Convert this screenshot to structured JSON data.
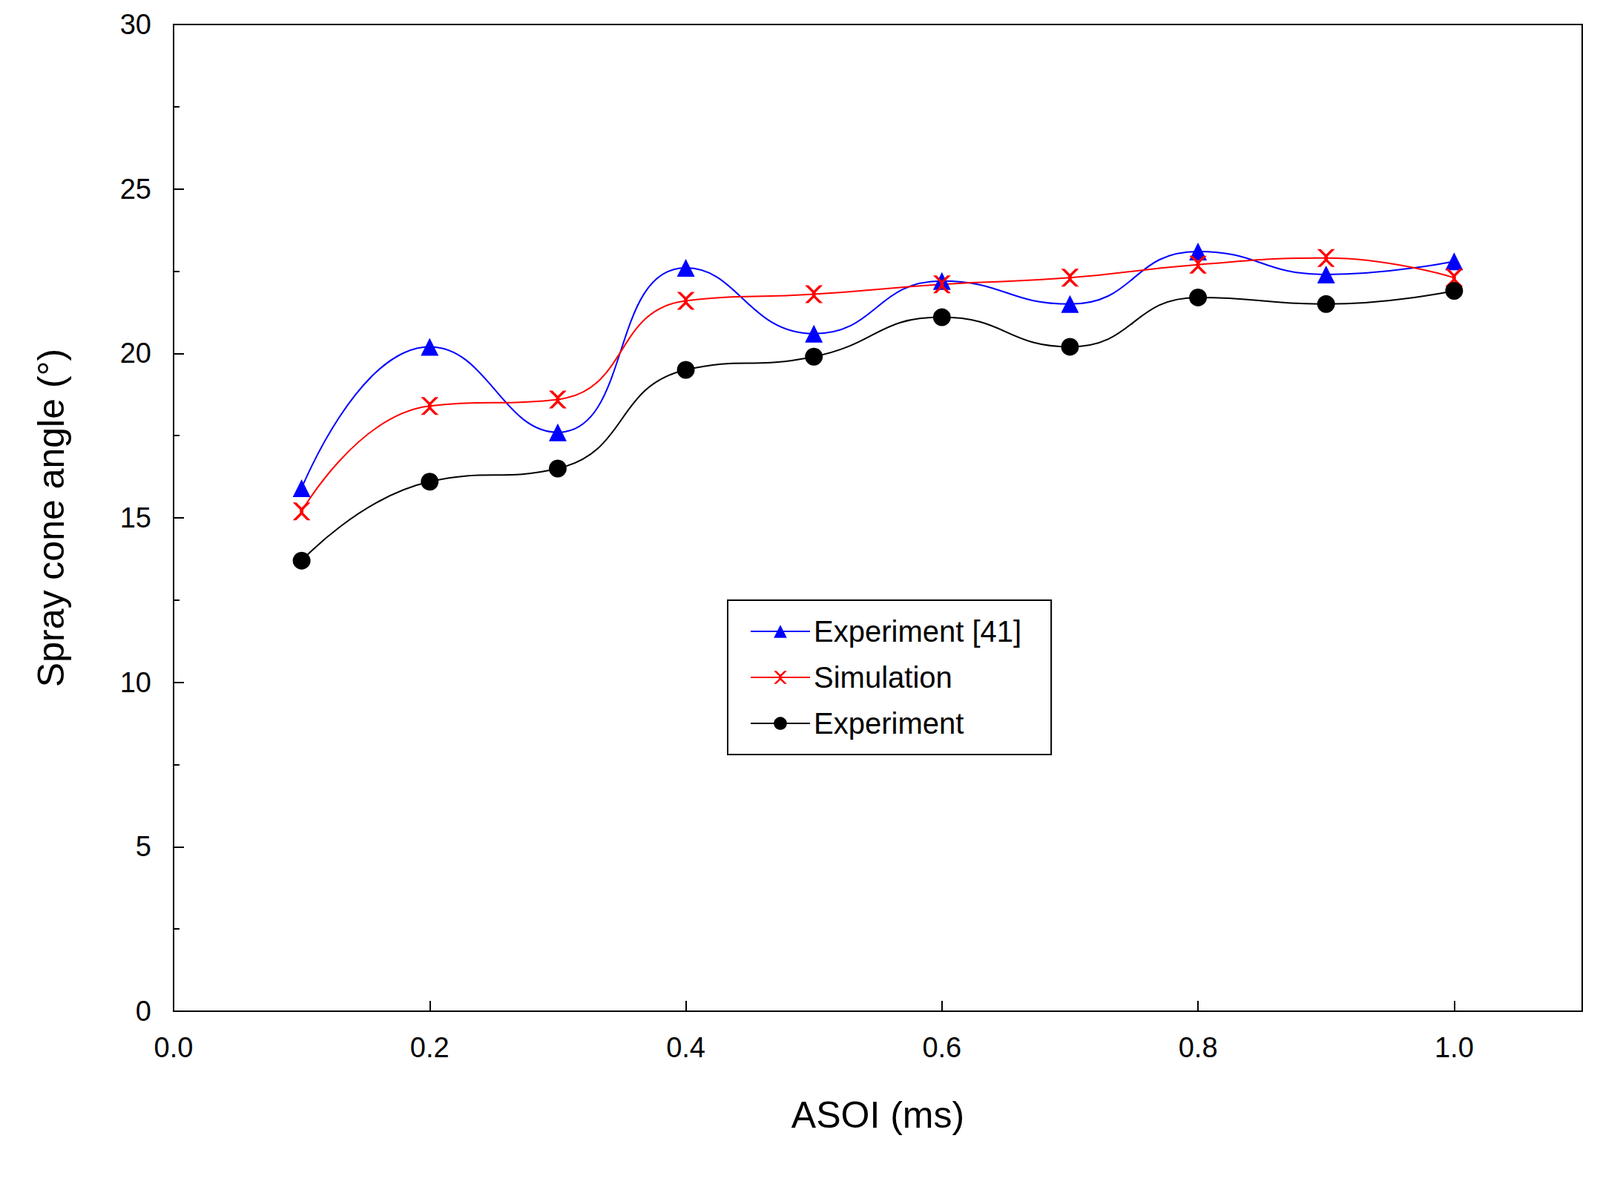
{
  "chart_data": {
    "type": "line",
    "x_label": "ASOI (ms)",
    "y_label": "Spray cone angle (°)",
    "x": [
      0.1,
      0.2,
      0.3,
      0.4,
      0.5,
      0.6,
      0.7,
      0.8,
      0.9,
      1.0
    ],
    "series": [
      {
        "name": "Experiment [41]",
        "color": "#0000ff",
        "marker": "triangle",
        "line_style": "smooth",
        "values": [
          15.9,
          20.2,
          17.6,
          22.6,
          20.6,
          22.2,
          21.5,
          23.1,
          22.4,
          22.8
        ]
      },
      {
        "name": "Simulation",
        "color": "#ff0000",
        "marker": "x",
        "line_style": "smooth",
        "values": [
          15.2,
          18.4,
          18.6,
          21.6,
          21.8,
          22.1,
          22.3,
          22.7,
          22.9,
          22.3
        ]
      },
      {
        "name": "Experiment",
        "color": "#000000",
        "marker": "circle",
        "line_style": "smooth",
        "values": [
          13.7,
          16.1,
          16.5,
          19.5,
          19.9,
          21.1,
          20.2,
          21.7,
          21.5,
          21.9
        ]
      }
    ],
    "xlim": [
      0,
      1.1
    ],
    "xticks": [
      {
        "value": 0,
        "label": "0.0"
      },
      0.2,
      0.4,
      0.6,
      0.8,
      {
        "value": 1,
        "label": "1.0"
      }
    ],
    "ylim": [
      0,
      30
    ],
    "yticks": [
      0,
      5,
      10,
      15,
      20,
      25,
      30
    ],
    "legend": "center",
    "grid": false
  }
}
